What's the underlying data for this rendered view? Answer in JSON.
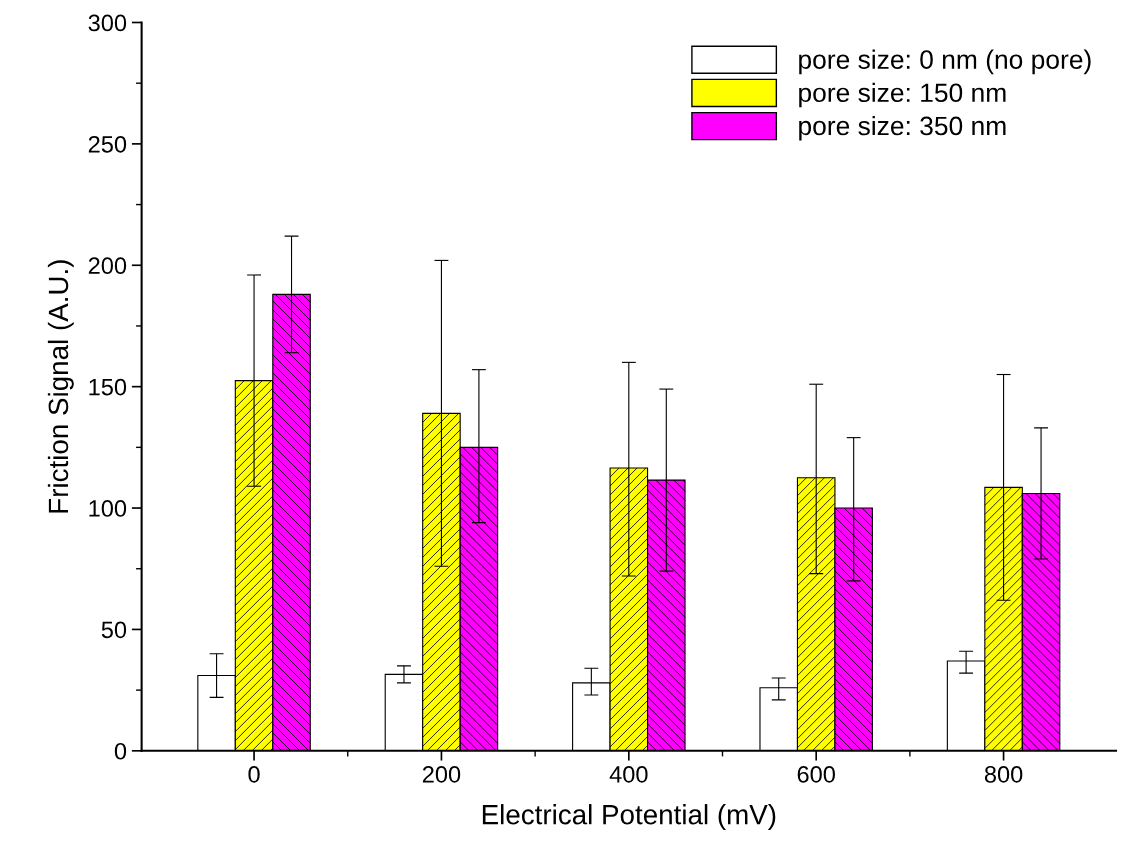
{
  "chart_data": {
    "type": "bar",
    "xlabel": "Electrical Potential (mV)",
    "ylabel": "Friction Signal (A.U.)",
    "categories": [
      "0",
      "200",
      "400",
      "600",
      "800"
    ],
    "series": [
      {
        "name": "pore size: 0 nm (no pore)",
        "color": "#ffffff",
        "values": [
          31,
          31.5,
          28,
          26,
          37
        ],
        "errors": [
          [
            22,
            40
          ],
          [
            28,
            35
          ],
          [
            23,
            34
          ],
          [
            21,
            30
          ],
          [
            32,
            41
          ]
        ]
      },
      {
        "name": "pore size: 150 nm",
        "color": "#ffff00",
        "values": [
          152.5,
          139,
          116.5,
          112.5,
          108.5
        ],
        "errors": [
          [
            109,
            196
          ],
          [
            76,
            202
          ],
          [
            72,
            160
          ],
          [
            73,
            151
          ],
          [
            62,
            155
          ]
        ]
      },
      {
        "name": "pore size: 350 nm",
        "color": "#ff00ff",
        "values": [
          188,
          125,
          111.5,
          100,
          106
        ],
        "errors": [
          [
            164,
            212
          ],
          [
            94,
            157
          ],
          [
            74,
            149
          ],
          [
            70,
            129
          ],
          [
            79,
            133
          ]
        ]
      }
    ],
    "ylim": [
      0,
      300
    ],
    "yticks": [
      0,
      50,
      100,
      150,
      200,
      250,
      300
    ],
    "grid": false,
    "legend": "top right"
  }
}
